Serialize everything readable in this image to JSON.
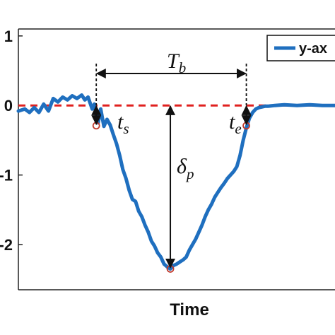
{
  "chart_data": {
    "type": "line",
    "xlabel": "Time",
    "ylabel": "",
    "title": "",
    "ylim": [
      -2.65,
      1.1
    ],
    "xlim": [
      0,
      100
    ],
    "yticks": [
      {
        "value": 1,
        "label": "1"
      },
      {
        "value": 0,
        "label": "0"
      },
      {
        "value": -1,
        "label": "-1"
      },
      {
        "value": -2,
        "label": "-2"
      }
    ],
    "grid": false,
    "legend": {
      "position": "top-right",
      "entries": [
        "y-ax"
      ]
    },
    "reference_line": {
      "y": 0,
      "color": "#e0201f",
      "style": "dashed"
    },
    "series": [
      {
        "name": "y-ax",
        "color": "#1f6fbf",
        "x": [
          0,
          2,
          3.5,
          5,
          6.5,
          8,
          9.5,
          11,
          12.5,
          14,
          15.5,
          17,
          18.5,
          20,
          21,
          22,
          22.7,
          23.3,
          24,
          24.6,
          25.2,
          26,
          27,
          28,
          29,
          30,
          31,
          32,
          33,
          34,
          35,
          36,
          37,
          38,
          39,
          40,
          41,
          42,
          43,
          44,
          45,
          46,
          47,
          48,
          49,
          50,
          51,
          52,
          53,
          54,
          55,
          56,
          57,
          58,
          59,
          60,
          61,
          62,
          63,
          64,
          65,
          66,
          67,
          68,
          69,
          70,
          71,
          72,
          73,
          74,
          75,
          76,
          77,
          78,
          79,
          81,
          84,
          88,
          92,
          96,
          100
        ],
        "y": [
          -0.08,
          -0.05,
          -0.1,
          -0.03,
          -0.1,
          0.02,
          -0.08,
          0.1,
          0.05,
          0.12,
          0.08,
          0.14,
          0.1,
          0.15,
          0.08,
          0.12,
          0.03,
          -0.05,
          0.02,
          -0.15,
          -0.25,
          -0.05,
          -0.3,
          -0.2,
          -0.28,
          -0.42,
          -0.55,
          -0.72,
          -0.92,
          -1.05,
          -1.22,
          -1.35,
          -1.38,
          -1.52,
          -1.6,
          -1.72,
          -1.82,
          -1.95,
          -2.02,
          -2.12,
          -2.18,
          -2.28,
          -2.32,
          -2.35,
          -2.3,
          -2.28,
          -2.25,
          -2.22,
          -2.18,
          -2.08,
          -2.0,
          -1.92,
          -1.82,
          -1.72,
          -1.6,
          -1.5,
          -1.42,
          -1.32,
          -1.25,
          -1.18,
          -1.12,
          -1.05,
          -1.0,
          -0.95,
          -0.88,
          -0.72,
          -0.5,
          -0.32,
          -0.18,
          -0.1,
          -0.05,
          -0.03,
          -0.02,
          -0.01,
          -0.01,
          0.0,
          0.01,
          0.0,
          0.01,
          0.0,
          0.0
        ]
      }
    ],
    "markers": [
      {
        "x": 24.6,
        "y": -0.29,
        "label": "t",
        "sub": "s"
      },
      {
        "x": 48,
        "y": -2.35,
        "label": "δ",
        "sub": "p"
      },
      {
        "x": 72,
        "y": -0.29,
        "label": "t",
        "sub": "e"
      }
    ],
    "annotations": [
      {
        "label": "T",
        "sub": "b"
      },
      {
        "label": "δ",
        "sub": "p"
      },
      {
        "label": "t",
        "sub": "s"
      },
      {
        "label": "t",
        "sub": "e"
      }
    ]
  }
}
